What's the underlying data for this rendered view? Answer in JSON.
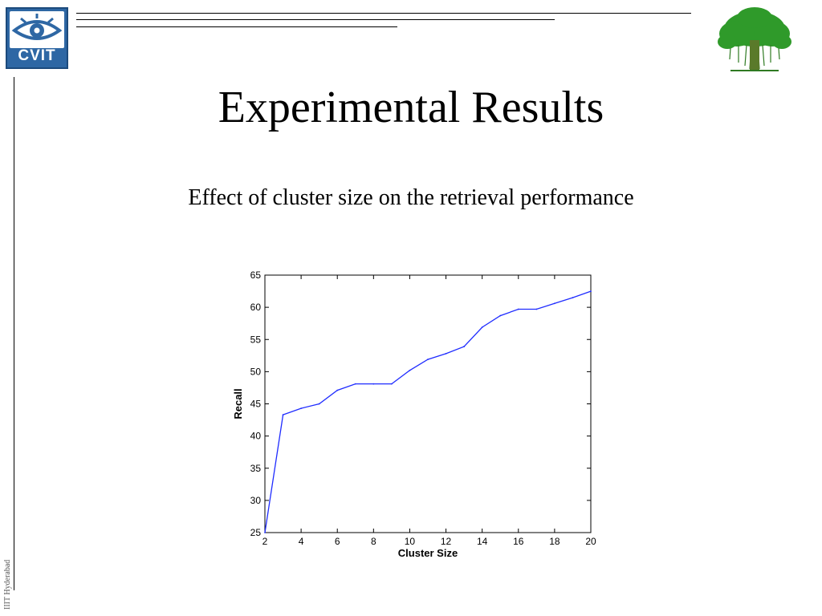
{
  "slide": {
    "title": "Experimental Results",
    "subtitle": "Effect of cluster size on the retrieval performance",
    "logo_text": "CVIT",
    "side_label": "IIIT Hyderabad"
  },
  "colors": {
    "logo_blue": "#2e67a4",
    "series_blue": "#1f2cff",
    "tree_green": "#2f9a2a"
  },
  "chart_data": {
    "type": "line",
    "xlabel": "Cluster Size",
    "ylabel": "Recall",
    "xlim": [
      2,
      20
    ],
    "ylim": [
      25,
      65
    ],
    "xticks": [
      2,
      4,
      6,
      8,
      10,
      12,
      14,
      16,
      18,
      20
    ],
    "yticks": [
      25,
      30,
      35,
      40,
      45,
      50,
      55,
      60,
      65
    ],
    "grid": false,
    "series": [
      {
        "x": [
          2,
          3,
          4,
          5,
          6,
          7,
          8,
          9,
          10,
          11,
          12,
          13,
          14,
          15,
          16,
          17,
          18,
          19,
          20
        ],
        "y": [
          25.0,
          43.3,
          44.3,
          45.0,
          47.1,
          48.1,
          48.1,
          48.1,
          50.2,
          51.9,
          52.8,
          53.9,
          56.9,
          58.7,
          59.7,
          59.7,
          60.6,
          61.5,
          62.5
        ]
      }
    ]
  }
}
